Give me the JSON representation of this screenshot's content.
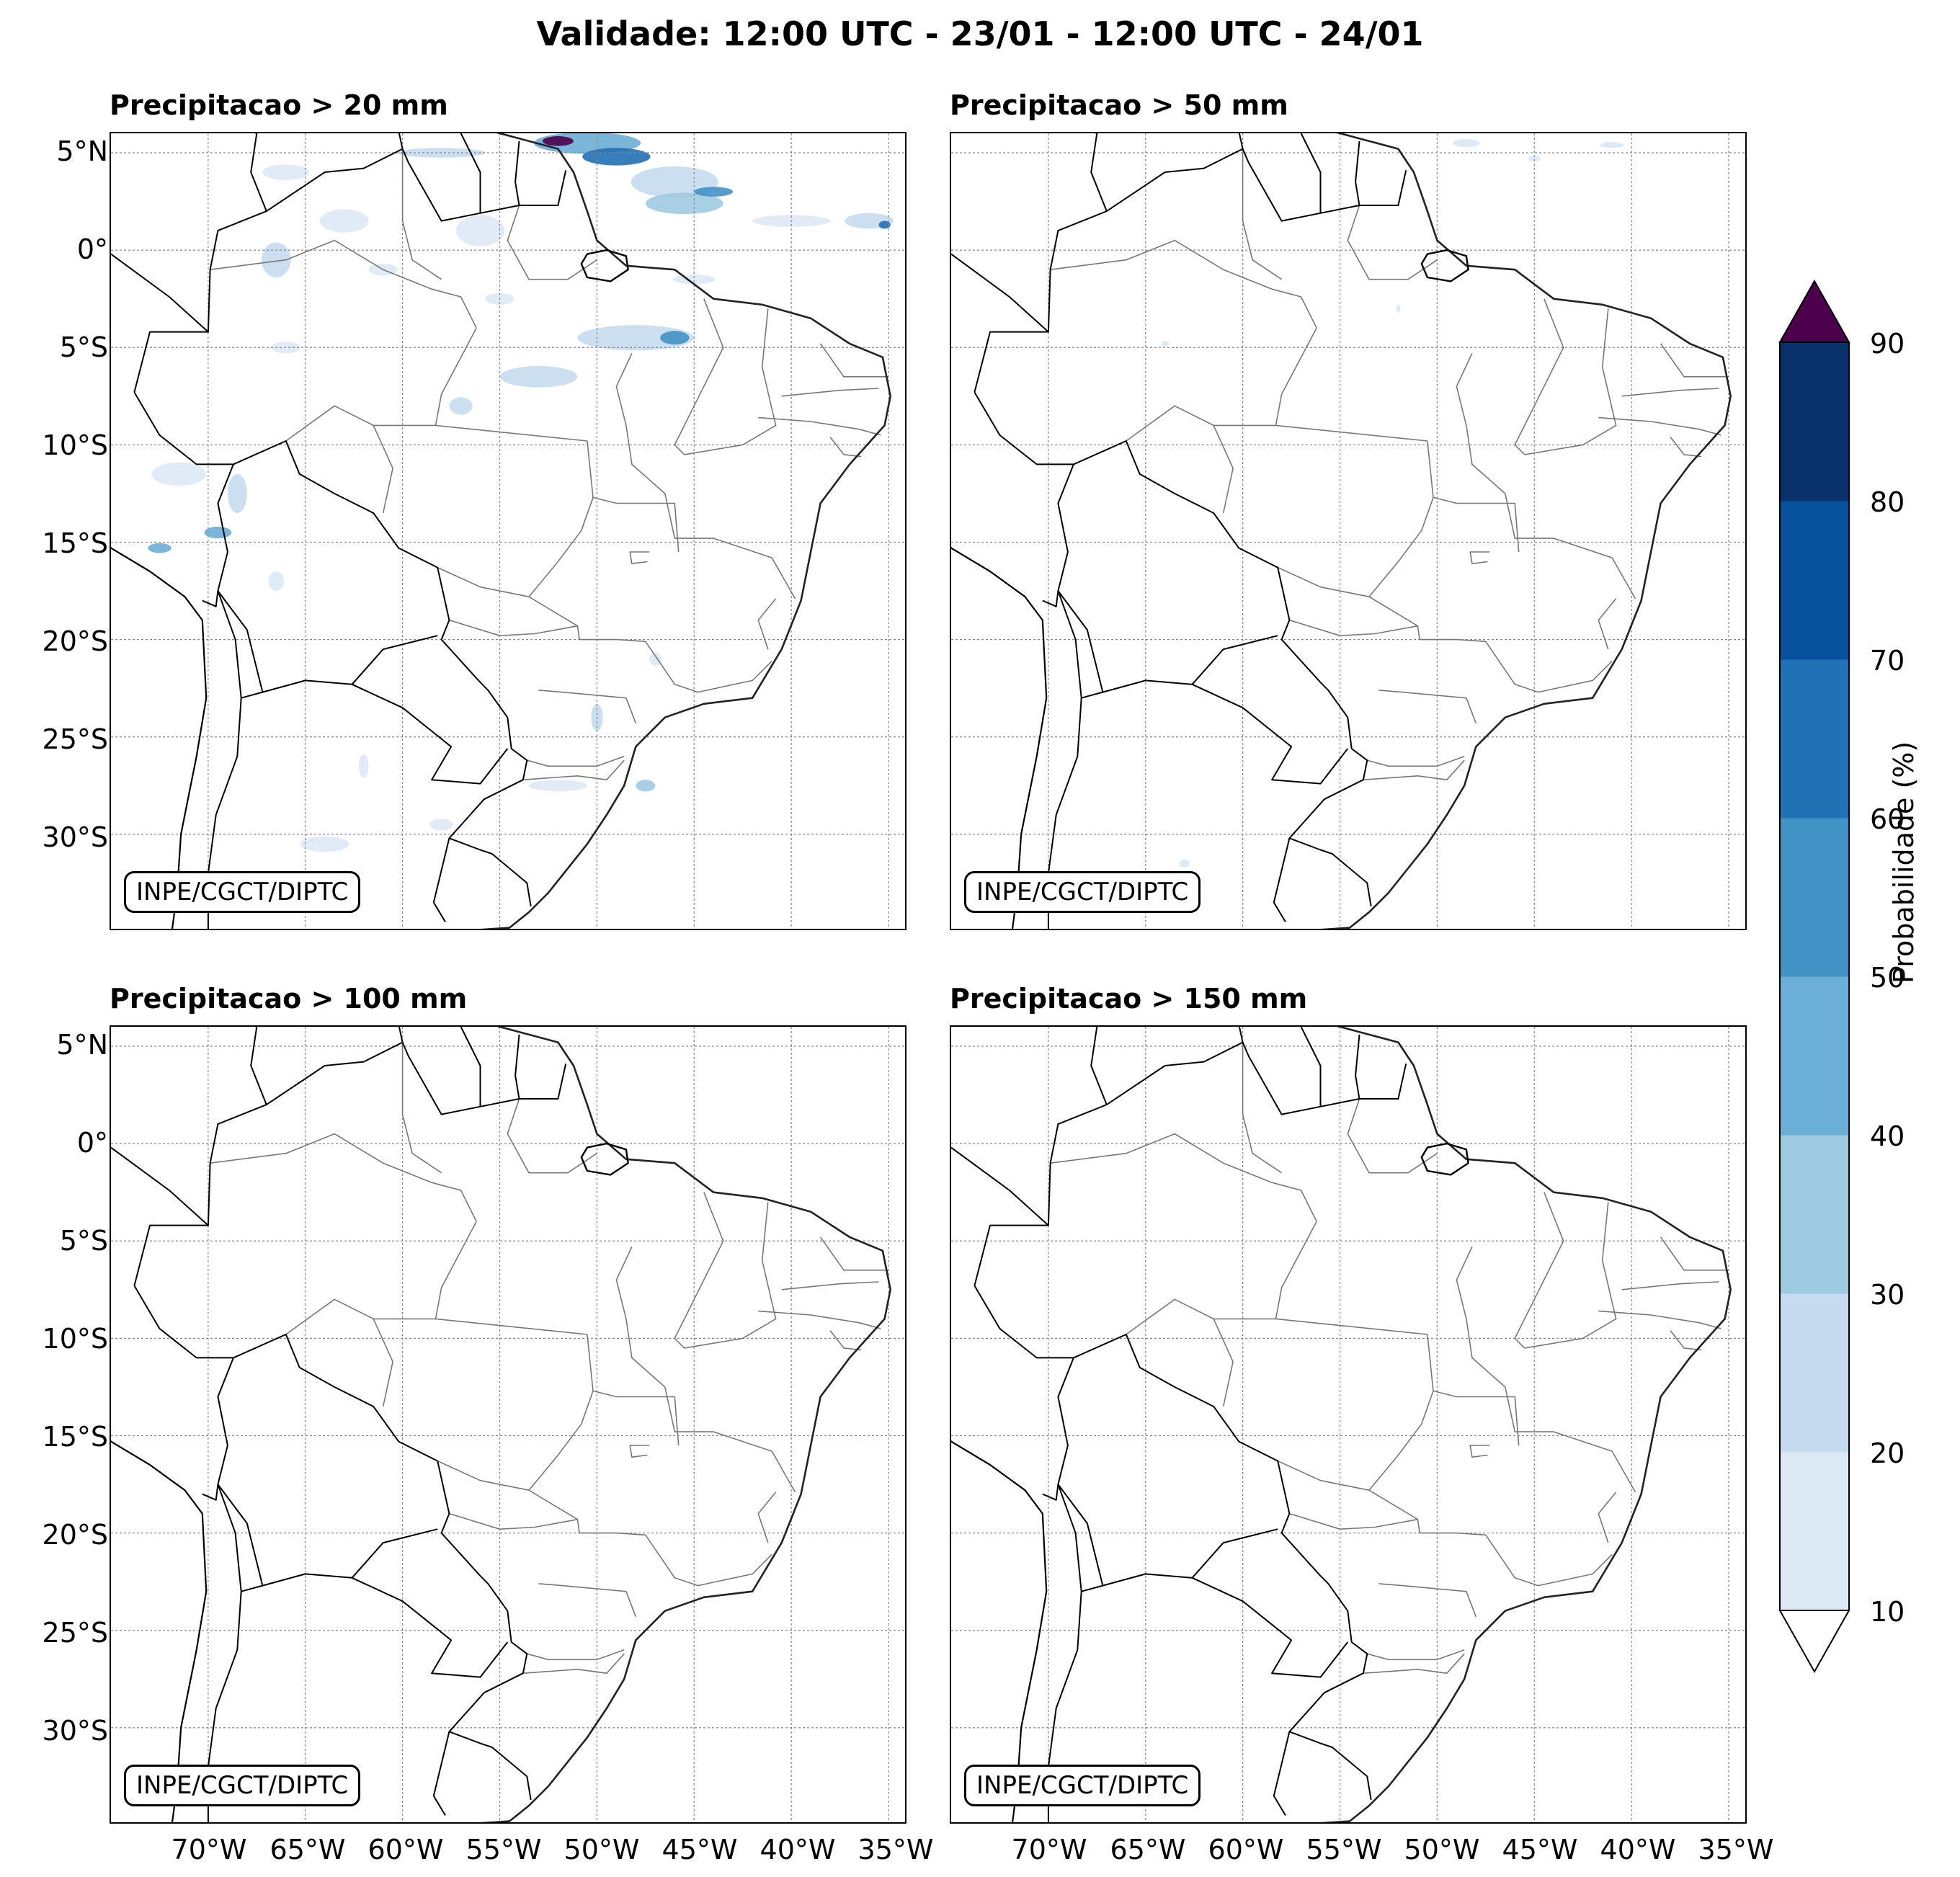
{
  "title": "Validade: 12:00 UTC - 23/01 - 12:00 UTC - 24/01",
  "panels": [
    {
      "title": "Precipitacao > 20 mm",
      "credit": "INPE/CGCT/DIPTC"
    },
    {
      "title": "Precipitacao > 50 mm",
      "credit": "INPE/CGCT/DIPTC"
    },
    {
      "title": "Precipitacao > 100 mm",
      "credit": "INPE/CGCT/DIPTC"
    },
    {
      "title": "Precipitacao > 150 mm",
      "credit": "INPE/CGCT/DIPTC"
    }
  ],
  "lat_labels": [
    "5°N",
    "0°",
    "5°S",
    "10°S",
    "15°S",
    "20°S",
    "25°S",
    "30°S"
  ],
  "lon_labels": [
    "70°W",
    "65°W",
    "60°W",
    "55°W",
    "50°W",
    "45°W",
    "40°W",
    "35°W"
  ],
  "colorbar": {
    "label": "Probabilidade (%)",
    "ticks": [
      "10",
      "20",
      "30",
      "40",
      "50",
      "60",
      "70",
      "80",
      "90"
    ],
    "colors": [
      "#dee9f6",
      "#c6dbef",
      "#9ecae1",
      "#6baed6",
      "#4292c6",
      "#2171b5",
      "#08519c",
      "#08306b"
    ],
    "over_color": "#4d004b",
    "under_color": "#ffffff"
  }
}
